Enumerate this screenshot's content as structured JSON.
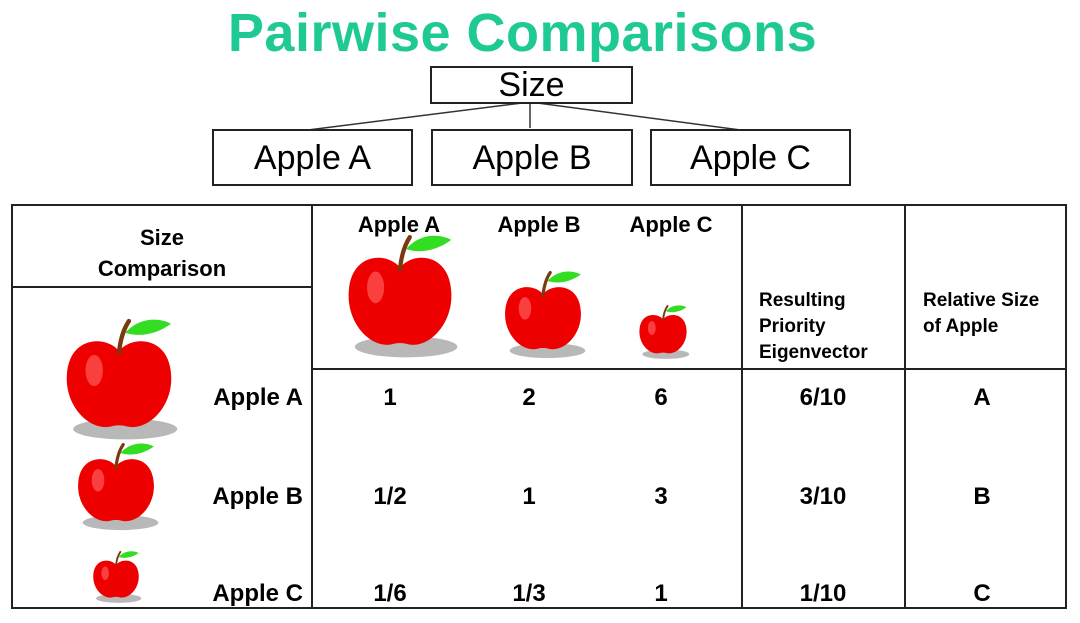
{
  "title": "Pairwise Comparisons",
  "hierarchy": {
    "goal": "Size",
    "alternatives": [
      "Apple A",
      "Apple B",
      "Apple C"
    ]
  },
  "table": {
    "corner_label_line1": "Size",
    "corner_label_line2": "Comparison",
    "column_headers": [
      "Apple A",
      "Apple B",
      "Apple C"
    ],
    "eigen_header": [
      "Resulting",
      "Priority",
      "Eigenvector"
    ],
    "relative_header": [
      "Relative Size",
      "of Apple"
    ],
    "rows": [
      {
        "label": "Apple A",
        "values": [
          "1",
          "2",
          "6"
        ],
        "eigenvector": "6/10",
        "relative": "A"
      },
      {
        "label": "Apple B",
        "values": [
          "1/2",
          "1",
          "3"
        ],
        "eigenvector": "3/10",
        "relative": "B"
      },
      {
        "label": "Apple C",
        "values": [
          "1/6",
          "1/3",
          "1"
        ],
        "eigenvector": "1/10",
        "relative": "C"
      }
    ]
  },
  "colors": {
    "title": "#1fc994",
    "apple_red": "#ee0000",
    "leaf_green": "#33dd22",
    "shadow_gray": "#b8b8b8"
  },
  "icons": [
    "apple-icon"
  ]
}
